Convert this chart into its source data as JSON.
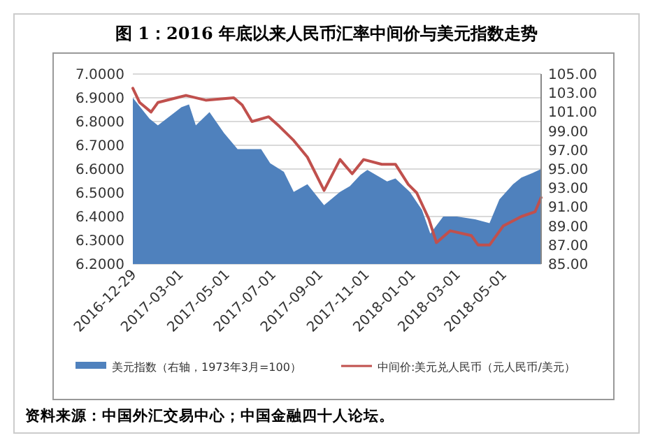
{
  "chart_data": {
    "type": "area",
    "title": "图 1：2016 年底以来人民币汇率中间价与美元指数走势",
    "series": [
      {
        "name": "美元指数（右轴，1973年3月=100）",
        "axis": "y2",
        "color": "#4f81bd",
        "x": [
          "2016-12-29",
          "2017-01-20",
          "2017-01-31",
          "2017-03-03",
          "2017-03-13",
          "2017-03-22",
          "2017-04-09",
          "2017-04-28",
          "2017-05-16",
          "2017-05-29",
          "2017-06-16",
          "2017-06-28",
          "2017-07-16",
          "2017-07-29",
          "2017-08-16",
          "2017-09-07",
          "2017-09-28",
          "2017-10-11",
          "2017-10-25",
          "2017-11-03",
          "2017-11-29",
          "2017-12-10",
          "2017-12-29",
          "2018-01-14",
          "2018-01-25",
          "2018-02-11",
          "2018-03-01",
          "2018-03-25",
          "2018-04-13",
          "2018-04-26",
          "2018-05-14",
          "2018-05-25",
          "2018-06-12",
          "2018-06-20"
        ],
        "values": [
          102.5,
          100.3,
          99.6,
          101.5,
          101.8,
          99.6,
          101.0,
          98.8,
          97.1,
          97.1,
          97.1,
          95.6,
          94.7,
          92.6,
          93.4,
          91.2,
          92.6,
          93.2,
          94.4,
          94.9,
          93.7,
          94.0,
          92.6,
          90.7,
          88.2,
          90.0,
          90.0,
          89.7,
          89.3,
          91.8,
          93.4,
          94.1,
          94.7,
          95.0
        ]
      },
      {
        "name": "中间价:美元兑人民币（元人民币/美元）",
        "type": "line",
        "color": "#c0504d",
        "x": [
          "2016-12-29",
          "2017-01-07",
          "2017-01-22",
          "2017-01-31",
          "2017-03-09",
          "2017-04-04",
          "2017-05-11",
          "2017-05-22",
          "2017-06-04",
          "2017-06-26",
          "2017-07-10",
          "2017-07-29",
          "2017-08-16",
          "2017-09-07",
          "2017-09-28",
          "2017-10-14",
          "2017-10-29",
          "2017-11-22",
          "2017-12-10",
          "2017-12-27",
          "2018-01-07",
          "2018-01-23",
          "2018-02-02",
          "2018-02-20",
          "2018-03-20",
          "2018-03-29",
          "2018-04-13",
          "2018-05-01",
          "2018-05-25",
          "2018-06-12",
          "2018-06-20"
        ],
        "values": [
          6.94,
          6.88,
          6.84,
          6.88,
          6.91,
          6.89,
          6.9,
          6.87,
          6.8,
          6.82,
          6.78,
          6.72,
          6.65,
          6.51,
          6.64,
          6.58,
          6.64,
          6.62,
          6.62,
          6.535,
          6.5,
          6.39,
          6.29,
          6.34,
          6.32,
          6.28,
          6.28,
          6.36,
          6.4,
          6.42,
          6.48
        ]
      }
    ],
    "xlim": [
      "2016-12-29",
      "2018-06-20"
    ],
    "xticks": [
      "2016-12-29",
      "2017-03-01",
      "2017-05-01",
      "2017-07-01",
      "2017-09-01",
      "2017-11-01",
      "2018-01-01",
      "2018-03-01",
      "2018-05-01"
    ],
    "ylim": [
      6.2,
      7.0
    ],
    "yticks": [
      {
        "value": 6.2,
        "label": "6.2000"
      },
      {
        "value": 6.3,
        "label": "6.3000"
      },
      {
        "value": 6.4,
        "label": "6.4000"
      },
      {
        "value": 6.5,
        "label": "6.5000"
      },
      {
        "value": 6.6,
        "label": "6.6000"
      },
      {
        "value": 6.7,
        "label": "6.7000"
      },
      {
        "value": 6.8,
        "label": "6.8000"
      },
      {
        "value": 6.9,
        "label": "6.9000"
      },
      {
        "value": 7.0,
        "label": "7.0000"
      }
    ],
    "y2lim": [
      85,
      105
    ],
    "y2ticks": [
      {
        "value": 85,
        "label": "85.00"
      },
      {
        "value": 87,
        "label": "87.00"
      },
      {
        "value": 89,
        "label": "89.00"
      },
      {
        "value": 91,
        "label": "91.00"
      },
      {
        "value": 93,
        "label": "93.00"
      },
      {
        "value": 95,
        "label": "95.00"
      },
      {
        "value": 97,
        "label": "97.00"
      },
      {
        "value": 99,
        "label": "99.00"
      },
      {
        "value": 101,
        "label": "101.00"
      },
      {
        "value": 103,
        "label": "103.00"
      },
      {
        "value": 105,
        "label": "105.00"
      }
    ],
    "grid": "y",
    "legend": "bottom",
    "annotations": [
      "资料来源：中国外汇交易中心；中国金融四十人论坛。"
    ]
  }
}
